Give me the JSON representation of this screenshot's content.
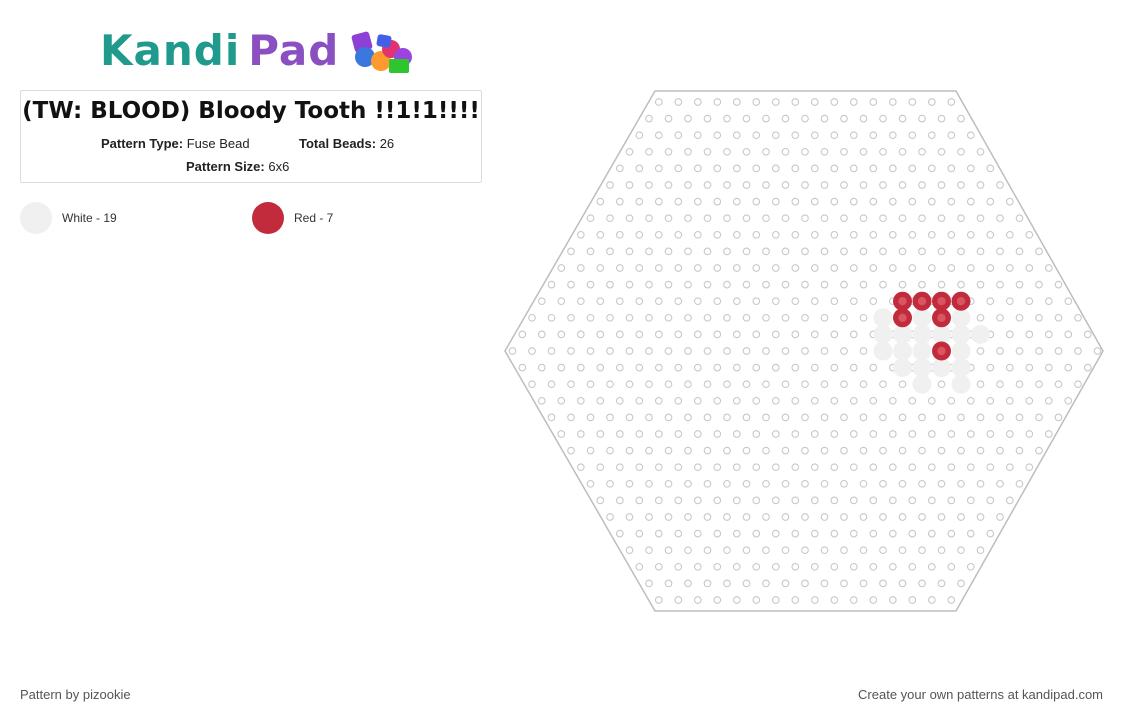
{
  "brand": {
    "logo_text_1": "Kandi",
    "logo_text_2": "Pad",
    "logo_icon": "colorful-beads-icon"
  },
  "pattern": {
    "title": "(TW: BLOOD) Bloody Tooth !!1!1!!!!",
    "type_label": "Pattern Type:",
    "type_value": "Fuse Bead",
    "total_label": "Total Beads:",
    "total_value": "26",
    "size_label": "Pattern Size:",
    "size_value": "6x6"
  },
  "legend": [
    {
      "label": "White - 19",
      "color": "#f0f0f0"
    },
    {
      "label": "Red - 7",
      "color": "#c22b3b"
    }
  ],
  "board": {
    "shape": "hexagon",
    "outline_color": "#bdbdbd",
    "peg_color": "#c8c8c8",
    "beads": {
      "red": [
        [
          8,
          6
        ],
        [
          9,
          6
        ],
        [
          10,
          6
        ],
        [
          11,
          6
        ],
        [
          8,
          7
        ],
        [
          10,
          7
        ],
        [
          10,
          9
        ]
      ],
      "white": [
        [
          7,
          7
        ],
        [
          9,
          7
        ],
        [
          11,
          7
        ],
        [
          7,
          8
        ],
        [
          8,
          8
        ],
        [
          9,
          8
        ],
        [
          10,
          8
        ],
        [
          11,
          8
        ],
        [
          12,
          8
        ],
        [
          7,
          9
        ],
        [
          8,
          9
        ],
        [
          9,
          9
        ],
        [
          11,
          9
        ],
        [
          8,
          10
        ],
        [
          9,
          10
        ],
        [
          10,
          10
        ],
        [
          11,
          10
        ],
        [
          9,
          11
        ],
        [
          11,
          11
        ]
      ]
    }
  },
  "footer": {
    "left": "Pattern by pizookie",
    "right": "Create your own patterns at kandipad.com"
  }
}
